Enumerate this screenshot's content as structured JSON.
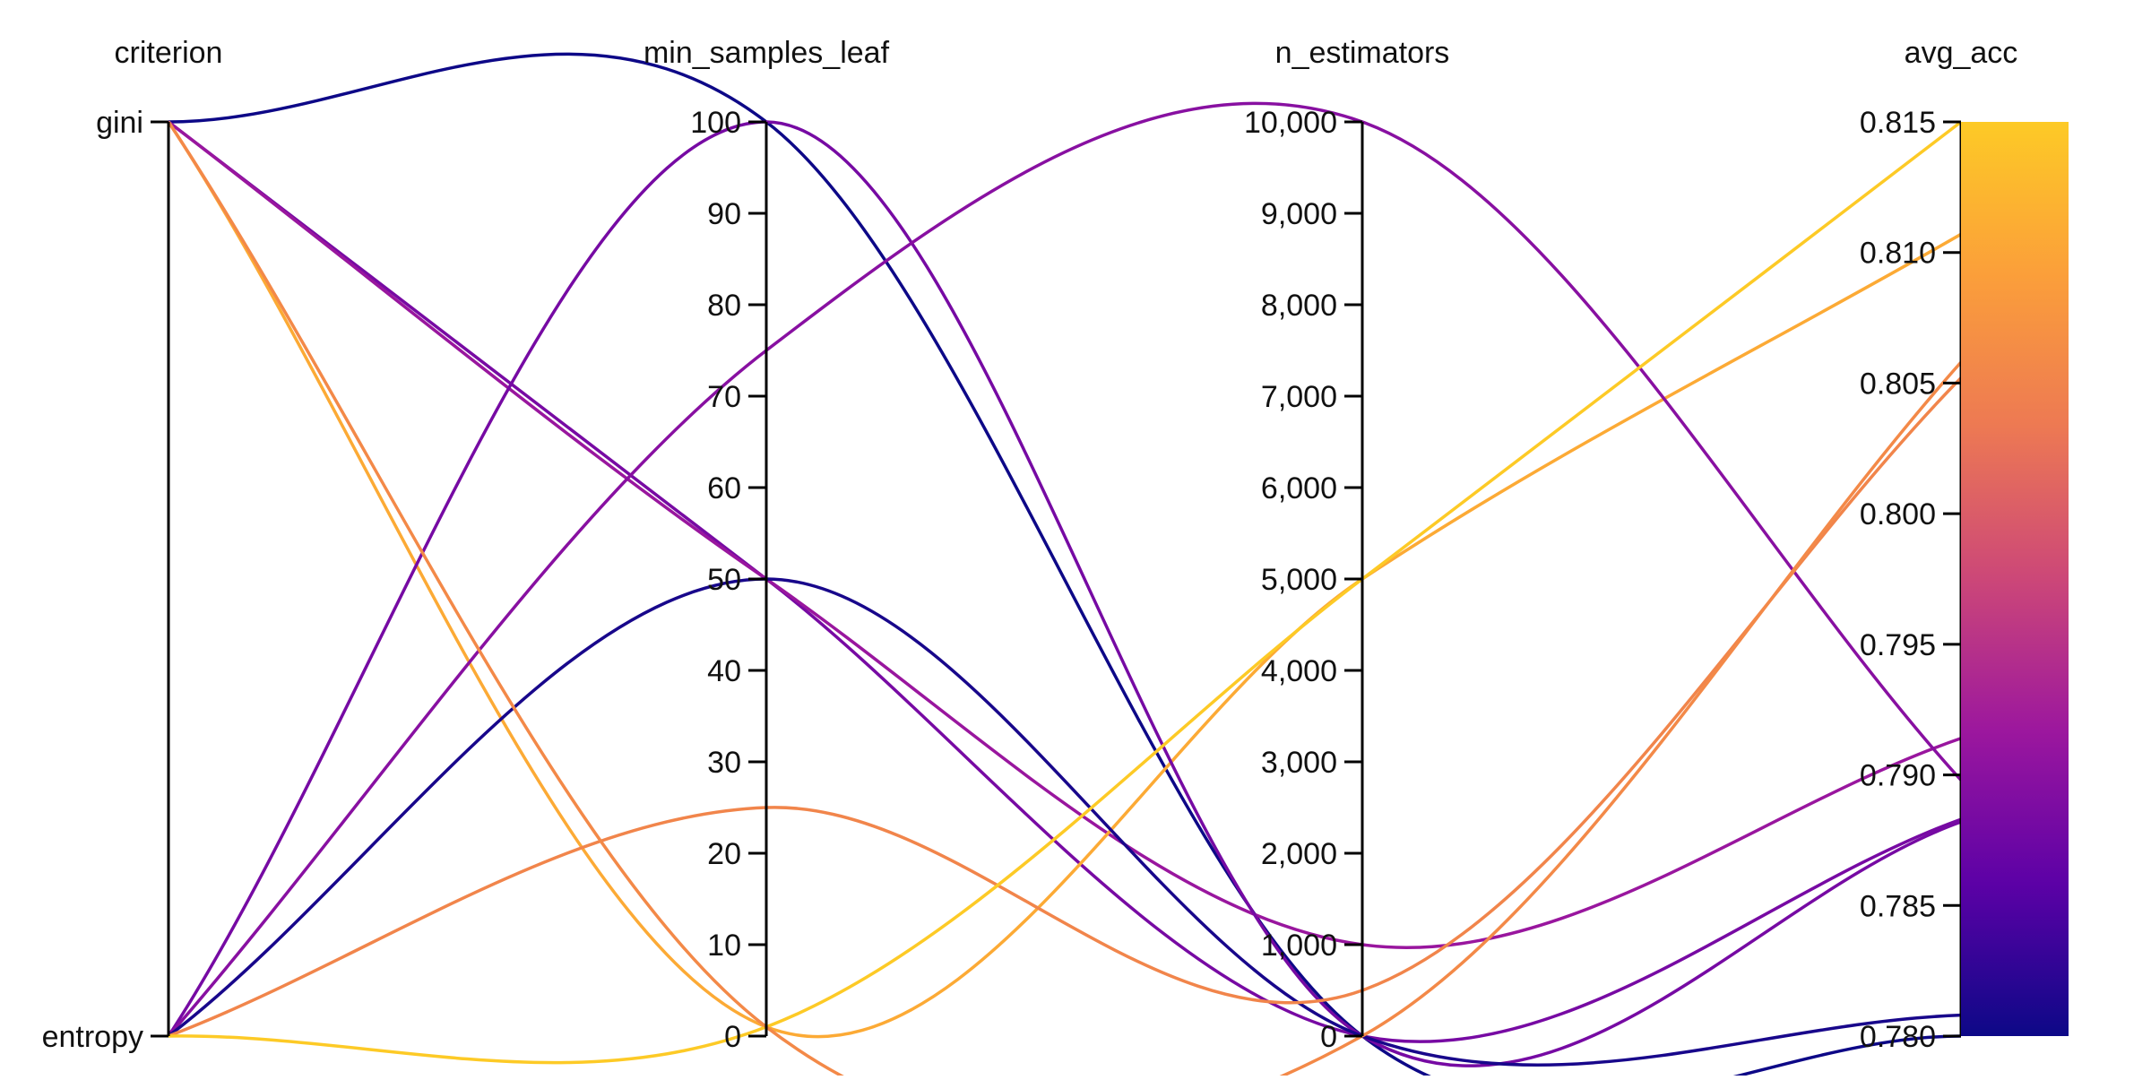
{
  "chart_data": {
    "type": "parallel_coordinates",
    "dimensions": [
      {
        "key": "criterion",
        "label": "criterion",
        "kind": "categorical",
        "categories": [
          "gini",
          "entropy"
        ]
      },
      {
        "key": "min_samples_leaf",
        "label": "min_samples_leaf",
        "kind": "numeric",
        "range": [
          0,
          100
        ],
        "ticks": [
          0,
          10,
          20,
          30,
          40,
          50,
          60,
          70,
          80,
          90,
          100
        ],
        "tick_labels": [
          "0",
          "10",
          "20",
          "30",
          "40",
          "50",
          "60",
          "70",
          "80",
          "90",
          "100"
        ]
      },
      {
        "key": "n_estimators",
        "label": "n_estimators",
        "kind": "numeric",
        "range": [
          0,
          10000
        ],
        "ticks": [
          0,
          1000,
          2000,
          3000,
          4000,
          5000,
          6000,
          7000,
          8000,
          9000,
          10000
        ],
        "tick_labels": [
          "0",
          "1,000",
          "2,000",
          "3,000",
          "4,000",
          "5,000",
          "6,000",
          "7,000",
          "8,000",
          "9,000",
          "10,000"
        ]
      },
      {
        "key": "avg_acc",
        "label": "avg_acc",
        "kind": "numeric",
        "range": [
          0.78,
          0.815
        ],
        "ticks": [
          0.78,
          0.785,
          0.79,
          0.795,
          0.8,
          0.805,
          0.81,
          0.815
        ],
        "tick_labels": [
          "0.780",
          "0.785",
          "0.790",
          "0.795",
          "0.800",
          "0.805",
          "0.810",
          "0.815"
        ]
      }
    ],
    "color_dimension": "avg_acc",
    "colorscale": [
      "#0d0887",
      "#6a00a8",
      "#b12a90",
      "#e16462",
      "#fca636",
      "#f0f921"
    ],
    "colorscale_displayed": [
      "#0d0887",
      "#5c01a6",
      "#9c179e",
      "#cc4778",
      "#ed7953",
      "#fb9f3a",
      "#fdca26"
    ],
    "records": [
      {
        "criterion": "gini",
        "min_samples_leaf": 100,
        "n_estimators": 1,
        "avg_acc": 0.78
      },
      {
        "criterion": "gini",
        "min_samples_leaf": 50,
        "n_estimators": 1,
        "avg_acc": 0.7883
      },
      {
        "criterion": "gini",
        "min_samples_leaf": 50,
        "n_estimators": 1000,
        "avg_acc": 0.7914
      },
      {
        "criterion": "gini",
        "min_samples_leaf": 1,
        "n_estimators": 5000,
        "avg_acc": 0.8107
      },
      {
        "criterion": "entropy",
        "min_samples_leaf": 100,
        "n_estimators": 1,
        "avg_acc": 0.7882
      },
      {
        "criterion": "entropy",
        "min_samples_leaf": 75,
        "n_estimators": 10000,
        "avg_acc": 0.7898
      },
      {
        "criterion": "entropy",
        "min_samples_leaf": 50,
        "n_estimators": 1,
        "avg_acc": 0.7808
      },
      {
        "criterion": "entropy",
        "min_samples_leaf": 25,
        "n_estimators": 500,
        "avg_acc": 0.8052
      },
      {
        "criterion": "entropy",
        "min_samples_leaf": 1,
        "n_estimators": 5000,
        "avg_acc": 0.815
      },
      {
        "criterion": "gini",
        "min_samples_leaf": 1,
        "n_estimators": 1,
        "avg_acc": 0.8058
      }
    ]
  }
}
